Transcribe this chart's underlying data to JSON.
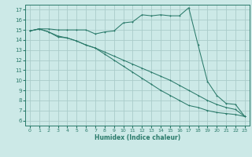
{
  "xlabel": "Humidex (Indice chaleur)",
  "bg_color": "#cce9e7",
  "grid_color": "#aaccca",
  "line_color": "#2a7a6a",
  "xlim": [
    -0.5,
    23.5
  ],
  "ylim": [
    5.5,
    17.5
  ],
  "xticks": [
    0,
    1,
    2,
    3,
    4,
    5,
    6,
    7,
    8,
    9,
    10,
    11,
    12,
    13,
    14,
    15,
    16,
    17,
    18,
    19,
    20,
    21,
    22,
    23
  ],
  "yticks": [
    6,
    7,
    8,
    9,
    10,
    11,
    12,
    13,
    14,
    15,
    16,
    17
  ],
  "line1_x": [
    0,
    1,
    2,
    3,
    4,
    5,
    6,
    7,
    8,
    9,
    10,
    11,
    12,
    13,
    14,
    15,
    16,
    17,
    18,
    19,
    20,
    21,
    22,
    23
  ],
  "line1_y": [
    14.9,
    15.1,
    15.1,
    15.0,
    15.0,
    15.0,
    15.0,
    14.6,
    14.8,
    14.9,
    15.7,
    15.8,
    16.5,
    16.4,
    16.5,
    16.4,
    16.4,
    17.2,
    13.5,
    9.9,
    8.5,
    7.7,
    7.6,
    6.4
  ],
  "line2_x": [
    0,
    1,
    2,
    3,
    4,
    5,
    6,
    7,
    8,
    9,
    10,
    11,
    12,
    13,
    14,
    15,
    16,
    17,
    18,
    19,
    20,
    21,
    22,
    23
  ],
  "line2_y": [
    14.9,
    15.1,
    14.8,
    14.4,
    14.2,
    13.9,
    13.5,
    13.2,
    12.8,
    12.4,
    12.0,
    11.6,
    11.2,
    10.8,
    10.4,
    10.0,
    9.5,
    9.0,
    8.5,
    8.0,
    7.6,
    7.3,
    7.1,
    6.4
  ],
  "line3_x": [
    0,
    1,
    2,
    3,
    4,
    5,
    6,
    7,
    8,
    9,
    10,
    11,
    12,
    13,
    14,
    15,
    16,
    17,
    18,
    19,
    20,
    21,
    22,
    23
  ],
  "line3_y": [
    14.9,
    15.1,
    14.8,
    14.3,
    14.2,
    13.9,
    13.5,
    13.2,
    12.6,
    12.0,
    11.4,
    10.8,
    10.2,
    9.6,
    9.0,
    8.5,
    8.0,
    7.5,
    7.3,
    7.0,
    6.8,
    6.7,
    6.6,
    6.4
  ]
}
